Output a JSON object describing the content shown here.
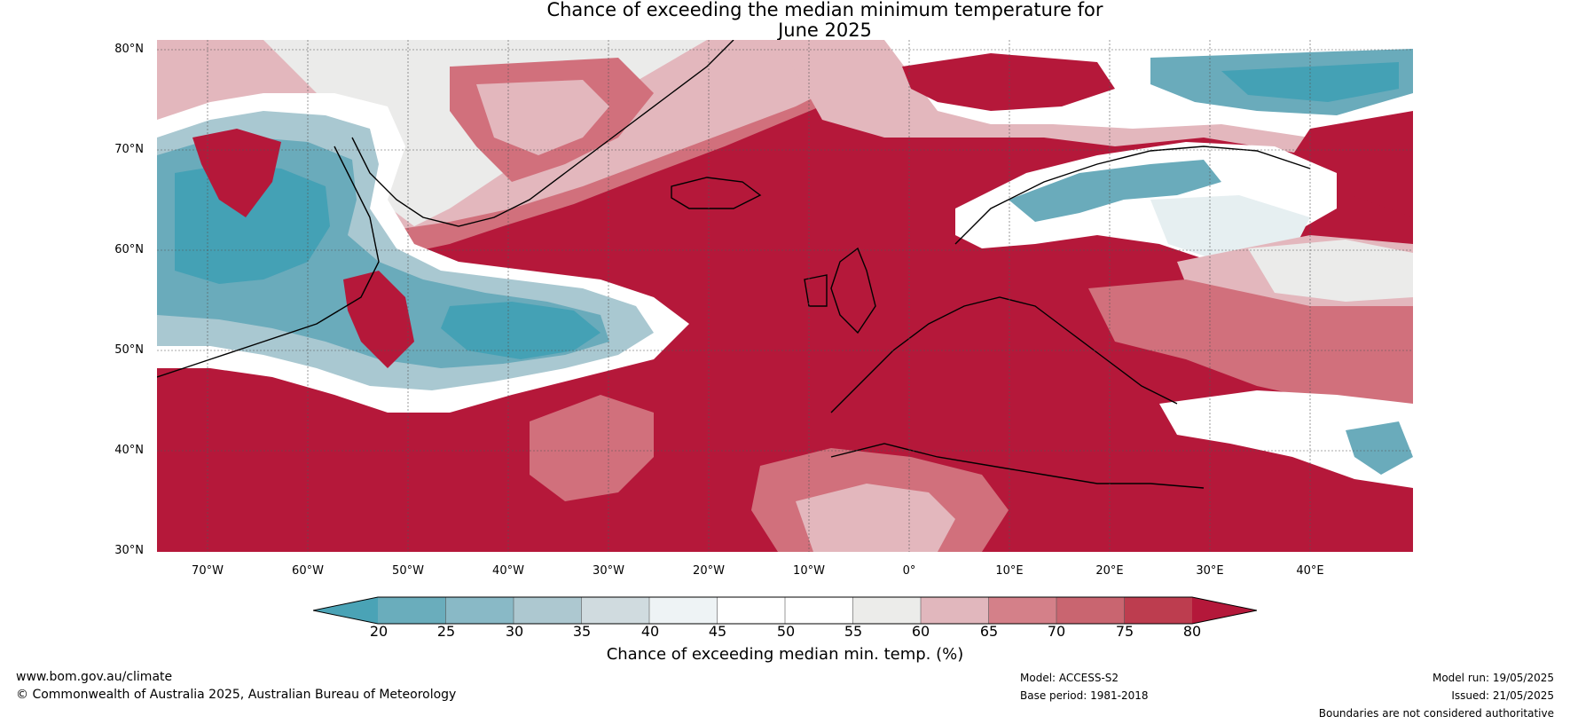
{
  "title": {
    "line1": "Chance of exceeding the median minimum temperature for",
    "line2": "June 2025"
  },
  "map": {
    "lat_labels": [
      "80°N",
      "70°N",
      "60°N",
      "50°N",
      "40°N",
      "30°N"
    ],
    "lon_labels": [
      "70°W",
      "60°W",
      "50°W",
      "40°W",
      "30°W",
      "20°W",
      "10°W",
      "0°",
      "10°E",
      "20°E",
      "30°E",
      "40°E"
    ],
    "extent": {
      "lon_min": -75,
      "lon_max": 50,
      "lat_min": 30,
      "lat_max": 81
    },
    "colors": {
      "very_high": "#b5183a",
      "high": "#c54b5c",
      "mid_high": "#d1707c",
      "low_high": "#e3b7bd",
      "neutral": "#ebebea",
      "white": "#ffffff",
      "low_low": "#e6eff1",
      "low_mid": "#a9c8d1",
      "low": "#6aabbb",
      "very_low": "#44a1b5"
    }
  },
  "colorbar": {
    "ticks": [
      "20",
      "25",
      "30",
      "35",
      "40",
      "45",
      "50",
      "55",
      "60",
      "65",
      "70",
      "75",
      "80"
    ],
    "colors": [
      "#4aa3b6",
      "#6aadbc",
      "#89b9c6",
      "#adc8d0",
      "#d0dbdf",
      "#eef3f5",
      "#ffffff",
      "#ffffff",
      "#ececea",
      "#e1b7bd",
      "#d48089",
      "#c96570",
      "#bd3d4f",
      "#b4183a"
    ],
    "label": "Chance of exceeding median min. temp. (%)"
  },
  "footer": {
    "url": "www.bom.gov.au/climate",
    "copyright": "© Commonwealth of Australia 2025, Australian Bureau of Meteorology",
    "model": "Model: ACCESS-S2",
    "base_period": "Base period: 1981-2018",
    "model_run": "Model run: 19/05/2025",
    "issued": "Issued: 21/05/2025",
    "disclaimer": "Boundaries are not considered authoritative"
  }
}
